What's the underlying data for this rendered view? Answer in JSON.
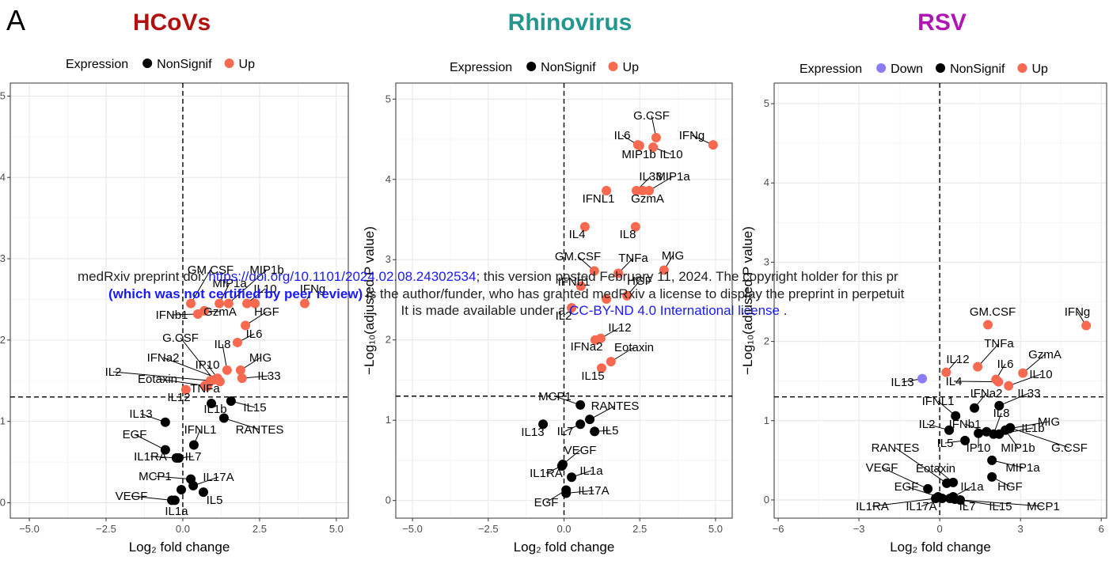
{
  "panel_label": "A",
  "watermark": {
    "line1_prefix": "medRxiv preprint doi: ",
    "doi": "https://doi.org/10.1101/2024.02.08.24302534",
    "line1_suffix": "; this version posted February 11, 2024. The copyright holder for this pr",
    "line2_bold": "(which was not certified by peer review)",
    "line2_suffix": " is the author/funder, who has granted medRxiv a license to display the preprint in perpetuit",
    "line3_prefix": "It is made available under a ",
    "license": "CC-BY-ND 4.0 International license",
    "line3_suffix": " ."
  },
  "chart_data": [
    {
      "type": "scatter",
      "title": "HCoVs",
      "title_color": "#b30f0f",
      "legend_title": "Expression",
      "xlabel": "Log₂ fold change",
      "xlim": [
        -5.62,
        5.39
      ],
      "ylim": [
        -0.19,
        5.16
      ],
      "xticks": [
        {
          "value": -5,
          "label": "−5.0"
        },
        {
          "value": -2.5,
          "label": "−2.5"
        },
        {
          "value": 0,
          "label": "0.0"
        },
        {
          "value": 2.5,
          "label": "2.5"
        },
        {
          "value": 5,
          "label": "5.0"
        }
      ],
      "yticks": [
        0,
        1,
        2,
        3,
        4,
        5
      ],
      "grid": true,
      "vline": 0,
      "hline": 1.3,
      "series": [
        {
          "name": "NonSignif",
          "color": "#000000",
          "labels": [
            "IL1b",
            "IL15",
            "RANTES",
            "IL13",
            "EGF",
            "IFNL1",
            "IL1RA",
            "IL7",
            "MCP1",
            "IL17A",
            "VEGF",
            "IL5",
            "IL1a",
            null
          ],
          "x": [
            0.93,
            1.57,
            1.34,
            -0.57,
            -0.57,
            0.36,
            -0.21,
            -0.13,
            0.26,
            0.34,
            -0.36,
            0.67,
            -0.26,
            -0.05
          ],
          "values": [
            1.22,
            1.25,
            1.04,
            0.99,
            0.65,
            0.71,
            0.55,
            0.55,
            0.29,
            0.21,
            0.03,
            0.13,
            0.03,
            0.16
          ]
        },
        {
          "name": "Up",
          "color": "#f8694f",
          "labels": [
            "GM.CSF",
            "MIP1b",
            "MIP1a",
            "IL10",
            null,
            "IFNg",
            "IFNb1",
            "GzmA",
            "HGF",
            "IL6",
            "G.CSF",
            "IL8",
            "IFNa2",
            "IP10",
            "MIG",
            "IL33",
            "IL2",
            "Eotaxin",
            "IL12",
            "TNFa"
          ],
          "x": [
            0.26,
            1.49,
            1.19,
            2.09,
            2.35,
            3.97,
            0.49,
            0.7,
            2.04,
            1.78,
            1.01,
            1.44,
            1.13,
            1.21,
            1.88,
            1.93,
            0.9,
            0.72,
            0.1,
            0.8
          ],
          "values": [
            2.45,
            2.45,
            2.45,
            2.45,
            2.45,
            2.45,
            2.32,
            2.36,
            2.18,
            1.97,
            1.51,
            1.63,
            1.53,
            1.49,
            1.63,
            1.53,
            1.5,
            1.44,
            1.39,
            1.43
          ]
        }
      ]
    },
    {
      "type": "scatter",
      "title": "Rhinovirus",
      "title_color": "#23968f",
      "legend_title": "Expression",
      "xlabel": "Log₂ fold change",
      "ylabel": "−Log₁₀(adjusted P value)",
      "xlim": [
        -5.55,
        5.55
      ],
      "ylim": [
        -0.22,
        5.2
      ],
      "xticks": [
        {
          "value": -5,
          "label": "−5.0"
        },
        {
          "value": -2.5,
          "label": "−2.5"
        },
        {
          "value": 0,
          "label": "0.0"
        },
        {
          "value": 2.5,
          "label": "2.5"
        },
        {
          "value": 5,
          "label": "5.0"
        }
      ],
      "yticks": [
        0,
        1,
        2,
        3,
        4,
        5
      ],
      "grid": true,
      "vline": 0,
      "hline": 1.3,
      "series": [
        {
          "name": "NonSignif",
          "color": "#000000",
          "labels": [
            "MCP1",
            "RANTES",
            "IL13",
            "IL7",
            "IL5",
            "VEGF",
            "IL1RA",
            "IL1a",
            "EGF",
            "IL17A"
          ],
          "x": [
            0.54,
            0.85,
            -0.69,
            0.54,
            1.01,
            -0.04,
            -0.07,
            0.25,
            0.07,
            0.07
          ],
          "values": [
            1.19,
            1.01,
            0.95,
            0.95,
            0.86,
            0.45,
            0.43,
            0.29,
            0.13,
            0.09
          ]
        },
        {
          "name": "Up",
          "color": "#f8694f",
          "labels": [
            "G.CSF",
            "IL6",
            "IL10",
            "MIP1b",
            "IFNg",
            "IL33",
            "MIP1a",
            "GzmA",
            "IFNL1",
            "IL4",
            "IL8",
            "GM.CSF",
            "TNFa",
            "MIG",
            "IFNb1",
            "HGF",
            null,
            "IL2",
            "IL12",
            "IFNa2",
            "Eotaxin",
            "IL15"
          ],
          "x": [
            3.04,
            2.44,
            2.94,
            2.49,
            4.92,
            2.39,
            2.81,
            2.6,
            1.4,
            0.69,
            2.36,
            1.0,
            1.79,
            3.3,
            0.56,
            2.08,
            1.4,
            0.25,
            1.21,
            1.03,
            1.55,
            1.24
          ],
          "values": [
            4.52,
            4.43,
            4.4,
            4.42,
            4.43,
            3.86,
            3.86,
            3.86,
            3.86,
            3.41,
            3.41,
            2.86,
            2.83,
            2.87,
            2.67,
            2.55,
            2.51,
            2.4,
            2.02,
            2.0,
            1.73,
            1.65
          ]
        }
      ]
    },
    {
      "type": "scatter",
      "title": "RSV",
      "title_color": "#b014b5",
      "legend_title": "Expression",
      "xlabel": "Log₂ fold change",
      "ylabel": "−Log₁₀(adjusted P value)",
      "xlim": [
        -6.15,
        6.2
      ],
      "ylim": [
        -0.23,
        5.26
      ],
      "xticks": [
        {
          "value": -6,
          "label": "−6"
        },
        {
          "value": -3,
          "label": "−3"
        },
        0,
        3,
        6
      ],
      "yticks": [
        0,
        1,
        2,
        3,
        4,
        5
      ],
      "grid": true,
      "vline": 0,
      "hline": 1.3,
      "series": [
        {
          "name": "Down",
          "color": "#8a7cf8",
          "labels": [
            "IL13"
          ],
          "x": [
            -0.65
          ],
          "values": [
            1.53
          ]
        },
        {
          "name": "NonSignif",
          "color": "#000000",
          "labels": [
            "IFNa2",
            "IL33",
            "IFNL1",
            "IL8",
            "MIG",
            "IL1b",
            "IL2",
            "IFNb1",
            "IL5",
            "IP10",
            "MIP1b",
            "G.CSF",
            "MIP1a",
            "RANTES",
            "Eotaxin",
            "VEGF",
            "HGF",
            "IL1a",
            "EGF",
            "IL1RA",
            "IL17A",
            "IL7",
            "IL15",
            "MCP1"
          ],
          "x": [
            1.29,
            2.21,
            0.59,
            2.0,
            2.59,
            2.21,
            0.35,
            1.74,
            0.94,
            1.44,
            2.44,
            2.62,
            1.94,
            0.26,
            0.5,
            -0.44,
            1.94,
            0.5,
            -0.06,
            -0.15,
            0.09,
            0.38,
            0.56,
            0.76
          ],
          "values": [
            1.16,
            1.19,
            1.06,
            0.83,
            0.9,
            0.83,
            0.88,
            0.86,
            0.75,
            0.84,
            0.88,
            0.91,
            0.5,
            0.21,
            0.22,
            0.14,
            0.29,
            0.04,
            0.04,
            0.02,
            0.02,
            0.02,
            0.01,
            0
          ]
        },
        {
          "name": "Up",
          "color": "#f8694f",
          "labels": [
            "IFNg",
            "GM.CSF",
            "IL12",
            "TNFa",
            "IL6",
            "GzmA",
            "IL10",
            "IL4"
          ],
          "x": [
            5.44,
            1.79,
            0.24,
            1.41,
            2.09,
            3.09,
            2.56,
            2.18
          ],
          "values": [
            2.2,
            2.21,
            1.61,
            1.68,
            1.52,
            1.6,
            1.44,
            1.49
          ]
        }
      ]
    }
  ]
}
